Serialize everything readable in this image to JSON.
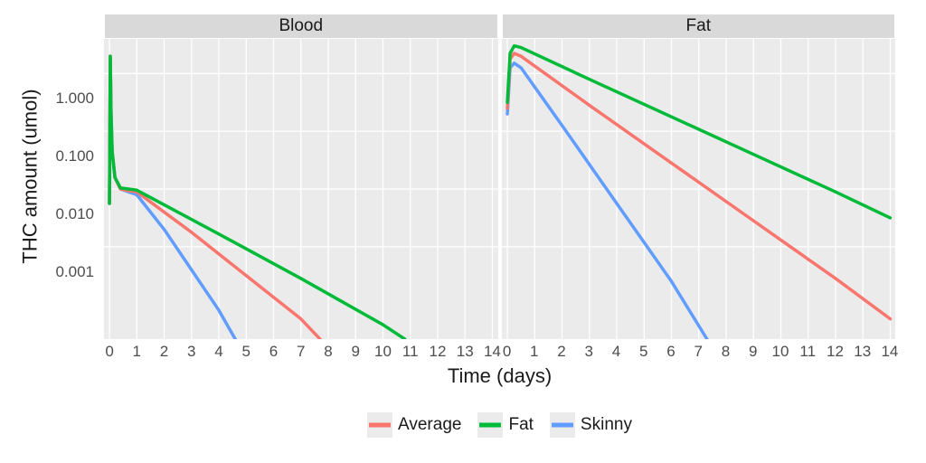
{
  "figure": {
    "background_color": "#ffffff",
    "panel_bg": "#ebebeb",
    "strip_bg": "#d9d9d9",
    "grid_major_color": "#ffffff",
    "grid_minor_color": "#f5f5f5",
    "tick_color": "#4d4d4d",
    "text_color": "#1a1a1a",
    "line_width": 3.5,
    "axis_title_fontsize": 22,
    "tick_fontsize": 17,
    "strip_fontsize": 19,
    "legend_fontsize": 19
  },
  "yaxis": {
    "label": "THC amount (umol)",
    "scale": "log10",
    "range_log10": [
      -4.6,
      0.6
    ],
    "major_ticks": [
      0.001,
      0.01,
      0.1,
      1.0
    ],
    "major_tick_labels": [
      "0.001",
      "0.010",
      "0.100",
      "1.000"
    ]
  },
  "xaxis": {
    "label": "Time (days)",
    "scale": "linear",
    "range": [
      -0.2,
      14.2
    ],
    "major_ticks": [
      0,
      1,
      2,
      3,
      4,
      5,
      6,
      7,
      8,
      9,
      10,
      11,
      12,
      13,
      14
    ],
    "major_tick_labels": [
      "0",
      "1",
      "2",
      "3",
      "4",
      "5",
      "6",
      "7",
      "8",
      "9",
      "10",
      "11",
      "12",
      "13",
      "14"
    ]
  },
  "series_colors": {
    "Average": "#f8766d",
    "Fat": "#00ba38",
    "Skinny": "#619cff"
  },
  "legend": {
    "items": [
      "Average",
      "Fat",
      "Skinny"
    ]
  },
  "panels": [
    {
      "title": "Blood",
      "series": [
        {
          "name": "Skinny",
          "points": [
            [
              0.0,
              -2.25
            ],
            [
              0.03,
              0.3
            ],
            [
              0.06,
              -0.7
            ],
            [
              0.1,
              -1.35
            ],
            [
              0.2,
              -1.8
            ],
            [
              0.4,
              -2.0
            ],
            [
              0.7,
              -2.05
            ],
            [
              1.0,
              -2.1
            ],
            [
              2.0,
              -2.7
            ],
            [
              3.0,
              -3.4
            ],
            [
              4.0,
              -4.1
            ],
            [
              4.6,
              -4.6
            ]
          ]
        },
        {
          "name": "Average",
          "points": [
            [
              0.0,
              -2.25
            ],
            [
              0.03,
              0.3
            ],
            [
              0.06,
              -0.7
            ],
            [
              0.1,
              -1.35
            ],
            [
              0.2,
              -1.8
            ],
            [
              0.4,
              -2.0
            ],
            [
              0.7,
              -2.03
            ],
            [
              1.0,
              -2.05
            ],
            [
              3.0,
              -2.75
            ],
            [
              5.0,
              -3.5
            ],
            [
              7.0,
              -4.25
            ],
            [
              7.7,
              -4.6
            ]
          ]
        },
        {
          "name": "Fat",
          "points": [
            [
              0.0,
              -2.25
            ],
            [
              0.03,
              0.3
            ],
            [
              0.06,
              -0.7
            ],
            [
              0.1,
              -1.35
            ],
            [
              0.2,
              -1.8
            ],
            [
              0.4,
              -1.98
            ],
            [
              0.7,
              -2.0
            ],
            [
              1.0,
              -2.02
            ],
            [
              4.0,
              -2.78
            ],
            [
              7.0,
              -3.55
            ],
            [
              10.0,
              -4.35
            ],
            [
              10.8,
              -4.6
            ]
          ]
        }
      ]
    },
    {
      "title": "Fat",
      "series": [
        {
          "name": "Skinny",
          "points": [
            [
              0.0,
              -0.7
            ],
            [
              0.1,
              0.1
            ],
            [
              0.25,
              0.18
            ],
            [
              0.5,
              0.1
            ],
            [
              2.0,
              -0.9
            ],
            [
              4.0,
              -2.25
            ],
            [
              6.0,
              -3.6
            ],
            [
              7.3,
              -4.6
            ]
          ]
        },
        {
          "name": "Average",
          "points": [
            [
              0.0,
              -0.6
            ],
            [
              0.1,
              0.25
            ],
            [
              0.25,
              0.35
            ],
            [
              0.5,
              0.3
            ],
            [
              3.0,
              -0.55
            ],
            [
              6.0,
              -1.55
            ],
            [
              9.0,
              -2.55
            ],
            [
              12.0,
              -3.55
            ],
            [
              14.0,
              -4.25
            ]
          ]
        },
        {
          "name": "Fat",
          "points": [
            [
              0.0,
              -0.5
            ],
            [
              0.1,
              0.35
            ],
            [
              0.25,
              0.48
            ],
            [
              0.5,
              0.45
            ],
            [
              3.0,
              -0.1
            ],
            [
              6.0,
              -0.75
            ],
            [
              9.0,
              -1.4
            ],
            [
              12.0,
              -2.05
            ],
            [
              14.0,
              -2.5
            ]
          ]
        }
      ]
    }
  ]
}
